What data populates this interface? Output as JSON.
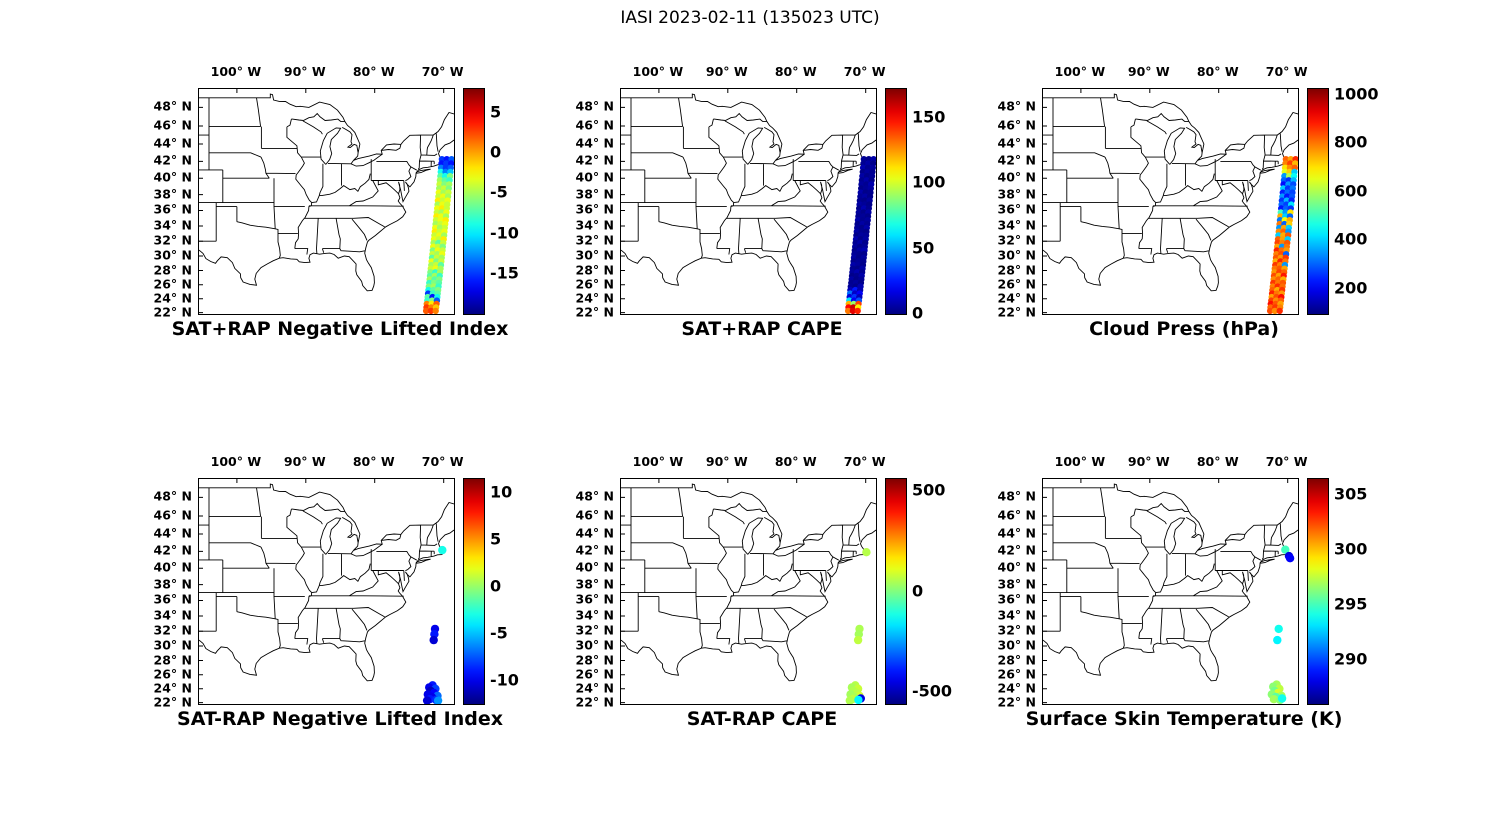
{
  "title": "IASI 2023-02-11 (135023 UTC)",
  "chart_data": {
    "type": "scatter",
    "figure_title": "IASI 2023-02-11 (135023 UTC)",
    "map": {
      "lon_range": [
        -105.5,
        -68.5
      ],
      "lat_range": [
        21.8,
        49.9
      ],
      "lon_ticks": [
        {
          "v": -100,
          "label": "100° W"
        },
        {
          "v": -90,
          "label": "90° W"
        },
        {
          "v": -80,
          "label": "80° W"
        },
        {
          "v": -70,
          "label": "70° W"
        }
      ],
      "lat_ticks": [
        {
          "v": 48,
          "label": "48° N"
        },
        {
          "v": 46,
          "label": "46° N"
        },
        {
          "v": 44,
          "label": "44° N"
        },
        {
          "v": 42,
          "label": "42° N"
        },
        {
          "v": 40,
          "label": "40° N"
        },
        {
          "v": 38,
          "label": "38° N"
        },
        {
          "v": 36,
          "label": "36° N"
        },
        {
          "v": 34,
          "label": "34° N"
        },
        {
          "v": 32,
          "label": "32° N"
        },
        {
          "v": 30,
          "label": "30° N"
        },
        {
          "v": 28,
          "label": "28° N"
        },
        {
          "v": 26,
          "label": "26° N"
        },
        {
          "v": 24,
          "label": "24° N"
        },
        {
          "v": 22,
          "label": "22° N"
        }
      ]
    },
    "swath": {
      "offsets": [
        -0.7,
        0,
        0.7
      ],
      "rows": [
        [
          42.25,
          -69.55
        ],
        [
          41.75,
          -69.61
        ],
        [
          41.25,
          -69.67
        ],
        [
          40.75,
          -69.72
        ],
        [
          40.25,
          -69.78
        ],
        [
          39.75,
          -69.84
        ],
        [
          39.25,
          -69.9
        ],
        [
          38.75,
          -69.95
        ],
        [
          38.25,
          -70.01
        ],
        [
          37.75,
          -70.07
        ],
        [
          37.25,
          -70.13
        ],
        [
          36.75,
          -70.18
        ],
        [
          36.25,
          -70.24
        ],
        [
          35.75,
          -70.3
        ],
        [
          35.25,
          -70.36
        ],
        [
          34.75,
          -70.41
        ],
        [
          34.25,
          -70.47
        ],
        [
          33.75,
          -70.53
        ],
        [
          33.25,
          -70.59
        ],
        [
          32.75,
          -70.64
        ],
        [
          32.25,
          -70.7
        ],
        [
          31.75,
          -70.76
        ],
        [
          31.25,
          -70.82
        ],
        [
          30.75,
          -70.87
        ],
        [
          30.25,
          -70.93
        ],
        [
          29.75,
          -70.99
        ],
        [
          29.25,
          -71.05
        ],
        [
          28.75,
          -71.1
        ],
        [
          28.25,
          -71.16
        ],
        [
          27.75,
          -71.22
        ],
        [
          27.25,
          -71.28
        ],
        [
          26.75,
          -71.33
        ],
        [
          26.25,
          -71.39
        ],
        [
          25.75,
          -71.45
        ],
        [
          25.25,
          -71.51
        ],
        [
          24.75,
          -71.56
        ],
        [
          24.25,
          -71.62
        ],
        [
          23.75,
          -71.68
        ],
        [
          23.25,
          -71.74
        ],
        [
          22.75,
          -71.79
        ],
        [
          22.25,
          -71.85
        ]
      ]
    },
    "panels": [
      {
        "title": "SAT+RAP Negative Lifted Index",
        "cmin": -20,
        "cmax": 8,
        "cticks": [
          5,
          0,
          -5,
          -10,
          -15
        ],
        "swath_values": [
          [
            -15,
            -16,
            -14
          ],
          [
            -16,
            -15,
            -16
          ],
          [
            -13,
            -15,
            -14
          ],
          [
            -9,
            -13,
            -11
          ],
          [
            -7,
            -9,
            -6
          ],
          [
            -5,
            -7,
            -8
          ],
          [
            -4,
            -6,
            -5
          ],
          [
            -5,
            -4,
            -6
          ],
          [
            -3,
            -5,
            -4
          ],
          [
            -4,
            -3,
            -5
          ],
          [
            -2,
            -4,
            -3
          ],
          [
            -5,
            -3,
            -4
          ],
          [
            -3,
            -2,
            -4
          ],
          [
            -4,
            -5,
            -3
          ],
          [
            -2,
            -3,
            -5
          ],
          [
            -4,
            -3,
            -2
          ],
          [
            -5,
            -4,
            -3
          ],
          [
            -3,
            -5,
            -4
          ],
          [
            -2,
            -4,
            -3
          ],
          [
            -4,
            -3,
            -5
          ],
          [
            -3,
            -4,
            -2
          ],
          [
            -5,
            -7,
            -4
          ],
          [
            -3,
            -4,
            -6
          ],
          [
            -6,
            -3,
            -4
          ],
          [
            -4,
            -5,
            -3
          ],
          [
            -7,
            -4,
            -5
          ],
          [
            -3,
            -6,
            -4
          ],
          [
            -5,
            -4,
            -7
          ],
          [
            -4,
            -3,
            -5
          ],
          [
            -6,
            -8,
            -5
          ],
          [
            -7,
            -5,
            -8
          ],
          [
            -5,
            -7,
            -6
          ],
          [
            -8,
            -6,
            -7
          ],
          [
            -6,
            -5,
            -8
          ],
          [
            -9,
            -7,
            -6
          ],
          [
            -15,
            -8,
            -7
          ],
          [
            -7,
            -16,
            -9
          ],
          [
            -8,
            -6,
            -14
          ],
          [
            1,
            -2,
            2
          ],
          [
            3,
            1,
            -1
          ],
          [
            2,
            3,
            1
          ]
        ]
      },
      {
        "title": "SAT+RAP CAPE",
        "cmin": 0,
        "cmax": 172,
        "cticks": [
          150,
          100,
          50,
          0
        ],
        "swath_values": [
          [
            4,
            2,
            7
          ],
          [
            3,
            6,
            2
          ],
          [
            8,
            3,
            5
          ],
          [
            2,
            5,
            3
          ],
          [
            6,
            2,
            4
          ],
          [
            3,
            7,
            2
          ],
          [
            5,
            3,
            8
          ],
          [
            2,
            4,
            6
          ],
          [
            7,
            2,
            3
          ],
          [
            4,
            6,
            2
          ],
          [
            3,
            2,
            5
          ],
          [
            6,
            4,
            2
          ],
          [
            2,
            8,
            3
          ],
          [
            5,
            2,
            6
          ],
          [
            3,
            4,
            2
          ],
          [
            7,
            3,
            5
          ],
          [
            2,
            6,
            3
          ],
          [
            4,
            2,
            7
          ],
          [
            6,
            3,
            2
          ],
          [
            2,
            5,
            4
          ],
          [
            8,
            2,
            6
          ],
          [
            3,
            7,
            2
          ],
          [
            5,
            2,
            4
          ],
          [
            2,
            6,
            8
          ],
          [
            4,
            3,
            2
          ],
          [
            6,
            2,
            5
          ],
          [
            2,
            4,
            3
          ],
          [
            7,
            5,
            2
          ],
          [
            3,
            2,
            6
          ],
          [
            5,
            8,
            3
          ],
          [
            2,
            3,
            7
          ],
          [
            6,
            2,
            4
          ],
          [
            3,
            5,
            2
          ],
          [
            4,
            2,
            8
          ],
          [
            10,
            25,
            8
          ],
          [
            40,
            12,
            20
          ],
          [
            15,
            30,
            10
          ],
          [
            60,
            20,
            35
          ],
          [
            120,
            90,
            140
          ],
          [
            150,
            160,
            110
          ],
          [
            130,
            155,
            145
          ]
        ]
      },
      {
        "title": "Cloud Press (hPa)",
        "cmin": 95,
        "cmax": 1025,
        "cticks": [
          1000,
          800,
          600,
          400,
          200
        ],
        "swath_values": [
          [
            820,
            760,
            870
          ],
          [
            790,
            850,
            740
          ],
          [
            700,
            780,
            820
          ],
          [
            650,
            720,
            400
          ],
          [
            350,
            600,
            450
          ],
          [
            300,
            250,
            380
          ],
          [
            220,
            350,
            280
          ],
          [
            400,
            260,
            320
          ],
          [
            240,
            310,
            270
          ],
          [
            350,
            230,
            290
          ],
          [
            260,
            380,
            240
          ],
          [
            310,
            270,
            420
          ],
          [
            230,
            300,
            260
          ],
          [
            500,
            350,
            700
          ],
          [
            750,
            400,
            300
          ],
          [
            320,
            680,
            750
          ],
          [
            800,
            300,
            720
          ],
          [
            350,
            760,
            400
          ],
          [
            780,
            820,
            350
          ],
          [
            400,
            750,
            830
          ],
          [
            820,
            760,
            400
          ],
          [
            850,
            790,
            830
          ],
          [
            760,
            350,
            800
          ],
          [
            880,
            810,
            770
          ],
          [
            790,
            840,
            300
          ],
          [
            830,
            770,
            860
          ],
          [
            750,
            880,
            800
          ],
          [
            860,
            790,
            350
          ],
          [
            800,
            830,
            760
          ],
          [
            770,
            850,
            820
          ],
          [
            840,
            760,
            890
          ],
          [
            780,
            820,
            750
          ],
          [
            860,
            800,
            830
          ],
          [
            790,
            870,
            810
          ],
          [
            820,
            750,
            860
          ],
          [
            880,
            800,
            770
          ],
          [
            760,
            840,
            900
          ],
          [
            850,
            780,
            820
          ],
          [
            900,
            830,
            760
          ],
          [
            810,
            860,
            790
          ],
          [
            840,
            780,
            870
          ]
        ]
      },
      {
        "title": "SAT-RAP Negative Lifted Index",
        "cmin": -12.5,
        "cmax": 11.5,
        "cticks": [
          10,
          5,
          0,
          -5,
          -10
        ],
        "points": [
          [
            -70.2,
            42.15,
            -3
          ],
          [
            -71.25,
            32.3,
            -10
          ],
          [
            -71.35,
            31.6,
            -9
          ],
          [
            -71.45,
            30.8,
            -10.5
          ],
          [
            -71.6,
            24.5,
            -9
          ],
          [
            -72.1,
            24.2,
            -10
          ],
          [
            -71.2,
            24.0,
            -8
          ],
          [
            -71.9,
            23.7,
            -11
          ],
          [
            -71.4,
            23.4,
            -9.5
          ],
          [
            -72.3,
            23.2,
            -10
          ],
          [
            -70.9,
            23.0,
            -7
          ],
          [
            -71.7,
            22.8,
            -10
          ],
          [
            -72.0,
            22.5,
            -9
          ],
          [
            -71.1,
            22.4,
            -8.5
          ],
          [
            -72.4,
            22.3,
            -10.5
          ],
          [
            -70.8,
            22.3,
            -6
          ]
        ]
      },
      {
        "title": "SAT-RAP CAPE",
        "cmin": -562,
        "cmax": 562,
        "cticks": [
          500,
          0,
          -500
        ],
        "points": [
          [
            -69.9,
            41.9,
            60
          ],
          [
            -70.9,
            32.3,
            50
          ],
          [
            -71.0,
            31.6,
            40
          ],
          [
            -71.1,
            30.8,
            70
          ],
          [
            -71.5,
            24.5,
            60
          ],
          [
            -72.0,
            24.2,
            45
          ],
          [
            -71.1,
            24.0,
            80
          ],
          [
            -71.8,
            23.7,
            55
          ],
          [
            -71.3,
            23.4,
            65
          ],
          [
            -72.2,
            23.2,
            40
          ],
          [
            -70.9,
            23.0,
            90
          ],
          [
            -71.6,
            22.8,
            50
          ],
          [
            -70.7,
            22.6,
            -450
          ],
          [
            -71.9,
            22.5,
            70
          ],
          [
            -71.05,
            22.4,
            -150
          ],
          [
            -72.3,
            22.3,
            55
          ]
        ]
      },
      {
        "title": "Surface Skin Temperature (K)",
        "cmin": 286,
        "cmax": 306.5,
        "cticks": [
          305,
          300,
          295,
          290
        ],
        "points": [
          [
            -70.35,
            42.2,
            295
          ],
          [
            -69.8,
            41.45,
            288
          ],
          [
            -69.65,
            41.2,
            288.5
          ],
          [
            -71.3,
            32.3,
            294
          ],
          [
            -71.5,
            30.8,
            293.5
          ],
          [
            -71.6,
            24.6,
            297
          ],
          [
            -72.1,
            24.3,
            296.5
          ],
          [
            -71.2,
            24.0,
            297.5
          ],
          [
            -71.9,
            23.7,
            296
          ],
          [
            -71.4,
            23.4,
            298
          ],
          [
            -72.3,
            23.2,
            296.5
          ],
          [
            -70.9,
            23.0,
            297
          ],
          [
            -71.7,
            22.8,
            295.5
          ],
          [
            -72.0,
            22.5,
            297
          ],
          [
            -71.1,
            22.4,
            296.5
          ],
          [
            -70.8,
            22.6,
            294
          ]
        ]
      }
    ]
  }
}
